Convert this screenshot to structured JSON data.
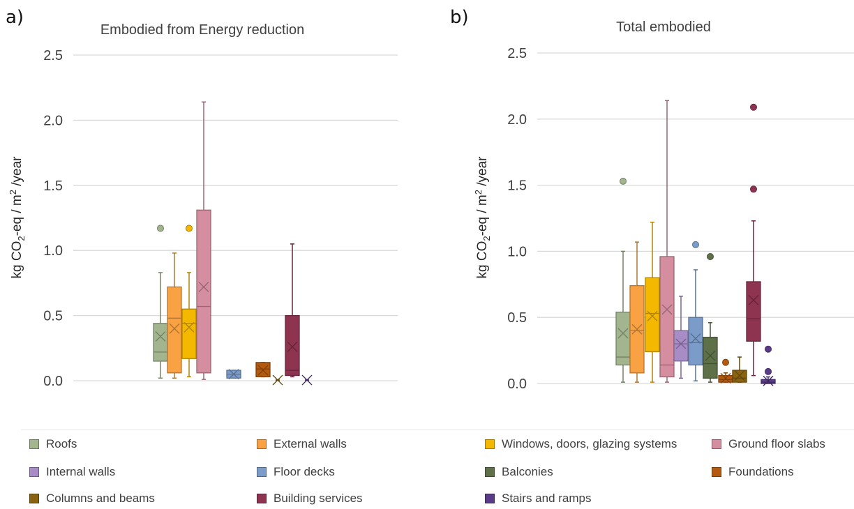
{
  "panels": [
    {
      "letter": "a)",
      "title": "Embodied from Energy reduction"
    },
    {
      "letter": "b)",
      "title": "Total embodied"
    }
  ],
  "categories": [
    {
      "key": "roofs",
      "label": "Roofs",
      "color": "#a3b58f"
    },
    {
      "key": "external_walls",
      "label": "External walls",
      "color": "#f9a244"
    },
    {
      "key": "windows",
      "label": "Windows, doors, glazing systems",
      "color": "#f5b800"
    },
    {
      "key": "ground_floor",
      "label": "Ground floor slabs",
      "color": "#d48ea0"
    },
    {
      "key": "internal_walls",
      "label": "Internal walls",
      "color": "#a88cc6"
    },
    {
      "key": "floor_decks",
      "label": "Floor decks",
      "color": "#7b9cc9"
    },
    {
      "key": "balconies",
      "label": "Balconies",
      "color": "#5e7048"
    },
    {
      "key": "foundations",
      "label": "Foundations",
      "color": "#b35a0e"
    },
    {
      "key": "columns",
      "label": "Columns and beams",
      "color": "#8a6310"
    },
    {
      "key": "services",
      "label": "Building services",
      "color": "#8e3350"
    },
    {
      "key": "stairs",
      "label": "Stairs and ramps",
      "color": "#5a3b87"
    }
  ],
  "chart_data": [
    {
      "type": "box",
      "title": "Embodied from Energy reduction",
      "ylabel": "kg CO2-eq / m2 /year",
      "ylim": [
        0,
        2.5
      ],
      "yticks": [
        "0.0",
        "0.5",
        "1.0",
        "1.5",
        "2.0",
        "2.5"
      ],
      "grid": true,
      "boxes": [
        {
          "category": "Roofs",
          "min": 0.02,
          "q1": 0.15,
          "median": 0.22,
          "q3": 0.44,
          "max": 0.83,
          "mean": 0.34,
          "outliers": [
            1.17
          ]
        },
        {
          "category": "External walls",
          "min": 0.02,
          "q1": 0.06,
          "median": 0.48,
          "q3": 0.72,
          "max": 0.98,
          "mean": 0.4,
          "outliers": []
        },
        {
          "category": "Windows, doors, glazing systems",
          "min": 0.03,
          "q1": 0.17,
          "median": 0.44,
          "q3": 0.55,
          "max": 0.83,
          "mean": 0.41,
          "outliers": [
            1.17
          ]
        },
        {
          "category": "Ground floor slabs",
          "min": 0.01,
          "q1": 0.06,
          "median": 0.57,
          "q3": 1.31,
          "max": 2.14,
          "mean": 0.72,
          "outliers": []
        },
        {
          "category": "Floor decks",
          "min": 0.02,
          "q1": 0.02,
          "median": 0.05,
          "q3": 0.08,
          "max": 0.08,
          "mean": 0.05,
          "outliers": []
        },
        {
          "category": "Foundations",
          "min": 0.03,
          "q1": 0.03,
          "median": 0.09,
          "q3": 0.14,
          "max": 0.14,
          "mean": 0.08,
          "outliers": []
        },
        {
          "category": "Columns and beams",
          "min": 0.005,
          "q1": 0.005,
          "median": 0.005,
          "q3": 0.005,
          "max": 0.005,
          "mean": 0.005,
          "outliers": []
        },
        {
          "category": "Building services",
          "min": 0.03,
          "q1": 0.04,
          "median": 0.08,
          "q3": 0.5,
          "max": 1.05,
          "mean": 0.26,
          "outliers": []
        },
        {
          "category": "Stairs and ramps",
          "min": 0.005,
          "q1": 0.005,
          "median": 0.005,
          "q3": 0.005,
          "max": 0.005,
          "mean": 0.005,
          "outliers": []
        }
      ]
    },
    {
      "type": "box",
      "title": "Total embodied",
      "ylabel": "kg CO2-eq / m2 /year",
      "ylim": [
        0,
        2.5
      ],
      "yticks": [
        "0.0",
        "0.5",
        "1.0",
        "1.5",
        "2.0",
        "2.5"
      ],
      "grid": true,
      "boxes": [
        {
          "category": "Roofs",
          "min": 0.01,
          "q1": 0.14,
          "median": 0.2,
          "q3": 0.54,
          "max": 1.0,
          "mean": 0.38,
          "outliers": [
            1.53
          ]
        },
        {
          "category": "External walls",
          "min": 0.01,
          "q1": 0.08,
          "median": 0.4,
          "q3": 0.74,
          "max": 1.07,
          "mean": 0.41,
          "outliers": []
        },
        {
          "category": "Windows, doors, glazing systems",
          "min": 0.01,
          "q1": 0.24,
          "median": 0.53,
          "q3": 0.8,
          "max": 1.22,
          "mean": 0.51,
          "outliers": []
        },
        {
          "category": "Ground floor slabs",
          "min": 0.01,
          "q1": 0.05,
          "median": 0.14,
          "q3": 0.96,
          "max": 2.14,
          "mean": 0.56,
          "outliers": []
        },
        {
          "category": "Internal walls",
          "min": 0.04,
          "q1": 0.17,
          "median": 0.3,
          "q3": 0.4,
          "max": 0.66,
          "mean": 0.3,
          "outliers": []
        },
        {
          "category": "Floor decks",
          "min": 0.02,
          "q1": 0.14,
          "median": 0.31,
          "q3": 0.5,
          "max": 0.86,
          "mean": 0.34,
          "outliers": [
            1.05
          ]
        },
        {
          "category": "Balconies",
          "min": 0.01,
          "q1": 0.04,
          "median": 0.15,
          "q3": 0.35,
          "max": 0.46,
          "mean": 0.21,
          "outliers": [
            0.96
          ]
        },
        {
          "category": "Foundations",
          "min": 0.01,
          "q1": 0.01,
          "median": 0.03,
          "q3": 0.06,
          "max": 0.08,
          "mean": 0.04,
          "outliers": [
            0.16
          ]
        },
        {
          "category": "Columns and beams",
          "min": 0.01,
          "q1": 0.01,
          "median": 0.04,
          "q3": 0.1,
          "max": 0.2,
          "mean": 0.06,
          "outliers": []
        },
        {
          "category": "Building services",
          "min": 0.06,
          "q1": 0.32,
          "median": 0.49,
          "q3": 0.77,
          "max": 1.23,
          "mean": 0.63,
          "outliers": [
            1.47,
            2.09
          ]
        },
        {
          "category": "Stairs and ramps",
          "min": 0.0,
          "q1": 0.0,
          "median": 0.01,
          "q3": 0.03,
          "max": 0.05,
          "mean": 0.02,
          "outliers": [
            0.09,
            0.26
          ]
        }
      ]
    }
  ]
}
